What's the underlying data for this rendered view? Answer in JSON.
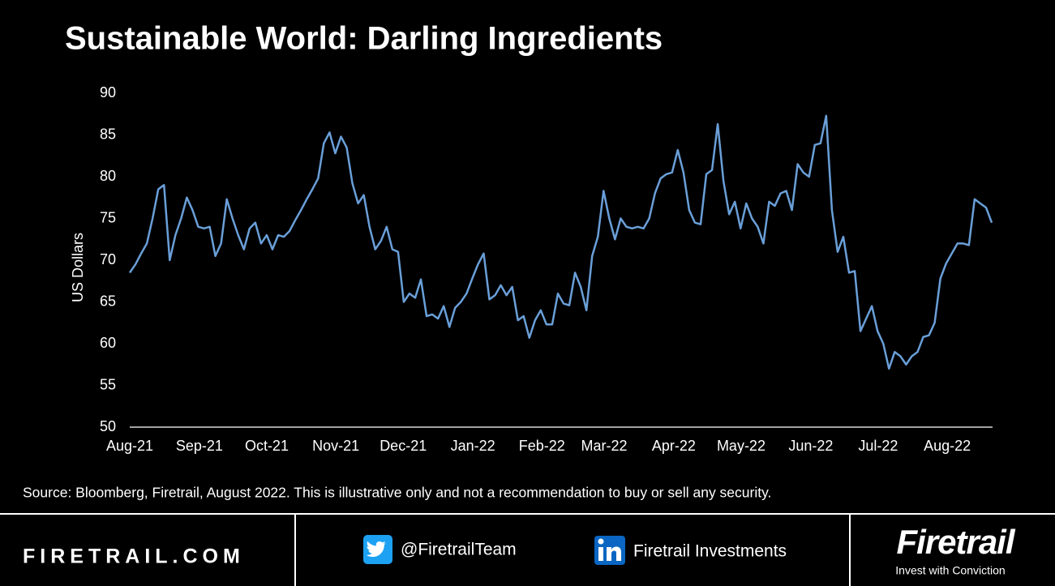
{
  "chart_data": {
    "type": "line",
    "title": "Sustainable World: Darling Ingredients",
    "ylabel": "US Dollars",
    "note": "Source: Bloomberg, Firetrail, August 2022. This is illustrative only and not a recommendation to buy or sell any security.",
    "color": "#6a9fd8",
    "values": [
      68.5,
      69.5,
      70.8,
      72,
      75,
      78.5,
      79,
      70,
      73,
      75,
      77.5,
      76,
      74,
      73.8,
      74,
      70.5,
      72,
      77.3,
      75,
      73,
      71.3,
      73.8,
      74.5,
      72,
      73,
      71.3,
      73,
      72.8,
      73.5,
      74.8,
      76,
      77.3,
      78.5,
      79.8,
      84,
      85.3,
      82.8,
      84.8,
      83.5,
      79.2,
      76.8,
      77.8,
      74,
      71.3,
      72.3,
      74,
      71.3,
      71,
      65,
      66,
      65.5,
      67.7,
      63.3,
      63.5,
      63,
      64.5,
      62,
      64.3,
      65,
      66,
      67.8,
      69.5,
      70.8,
      65.3,
      65.8,
      67,
      65.8,
      66.8,
      62.8,
      63.3,
      60.7,
      62.8,
      64,
      62.3,
      62.3,
      66,
      64.8,
      64.6,
      68.5,
      66.8,
      64,
      70.5,
      72.8,
      78.3,
      75,
      72.5,
      75,
      74,
      73.8,
      74,
      73.8,
      75,
      78,
      79.8,
      80.3,
      80.5,
      83.2,
      80.5,
      76,
      74.5,
      74.3,
      80.3,
      80.8,
      86.3,
      79.5,
      75.5,
      77,
      73.8,
      76.8,
      75,
      74,
      72,
      77,
      76.5,
      78,
      78.3,
      76,
      81.5,
      80.5,
      80,
      83.8,
      84,
      87.3,
      76,
      71,
      72.8,
      68.5,
      68.7,
      61.5,
      63,
      64.5,
      61.5,
      60,
      57,
      59,
      58.5,
      57.5,
      58.5,
      59,
      60.8,
      61,
      62.5,
      67.8,
      69.6,
      70.8,
      72,
      72,
      71.8,
      77.3,
      76.8,
      76.3,
      74.5
    ],
    "xlim": [
      0,
      151
    ],
    "xticks": [
      {
        "value": 0,
        "label": "Aug-21"
      },
      {
        "value": 12.2,
        "label": "Sep-21"
      },
      {
        "value": 24,
        "label": "Oct-21"
      },
      {
        "value": 36.1,
        "label": "Nov-21"
      },
      {
        "value": 47.9,
        "label": "Dec-21"
      },
      {
        "value": 60.1,
        "label": "Jan-22"
      },
      {
        "value": 72.2,
        "label": "Feb-22"
      },
      {
        "value": 83.1,
        "label": "Mar-22"
      },
      {
        "value": 95.3,
        "label": "Apr-22"
      },
      {
        "value": 107.1,
        "label": "May-22"
      },
      {
        "value": 119.3,
        "label": "Jun-22"
      },
      {
        "value": 131.1,
        "label": "Jul-22"
      },
      {
        "value": 143.2,
        "label": "Aug-22"
      }
    ],
    "ylim": [
      50,
      90
    ],
    "yticks": [
      50,
      55,
      60,
      65,
      70,
      75,
      80,
      85,
      90
    ],
    "grid": false
  },
  "footer": {
    "website": "FIRETRAIL.COM",
    "twitter": "@FiretrailTeam",
    "linkedin": "Firetrail Investments",
    "logo": "Firetrail",
    "tagline": "Invest with Conviction"
  }
}
